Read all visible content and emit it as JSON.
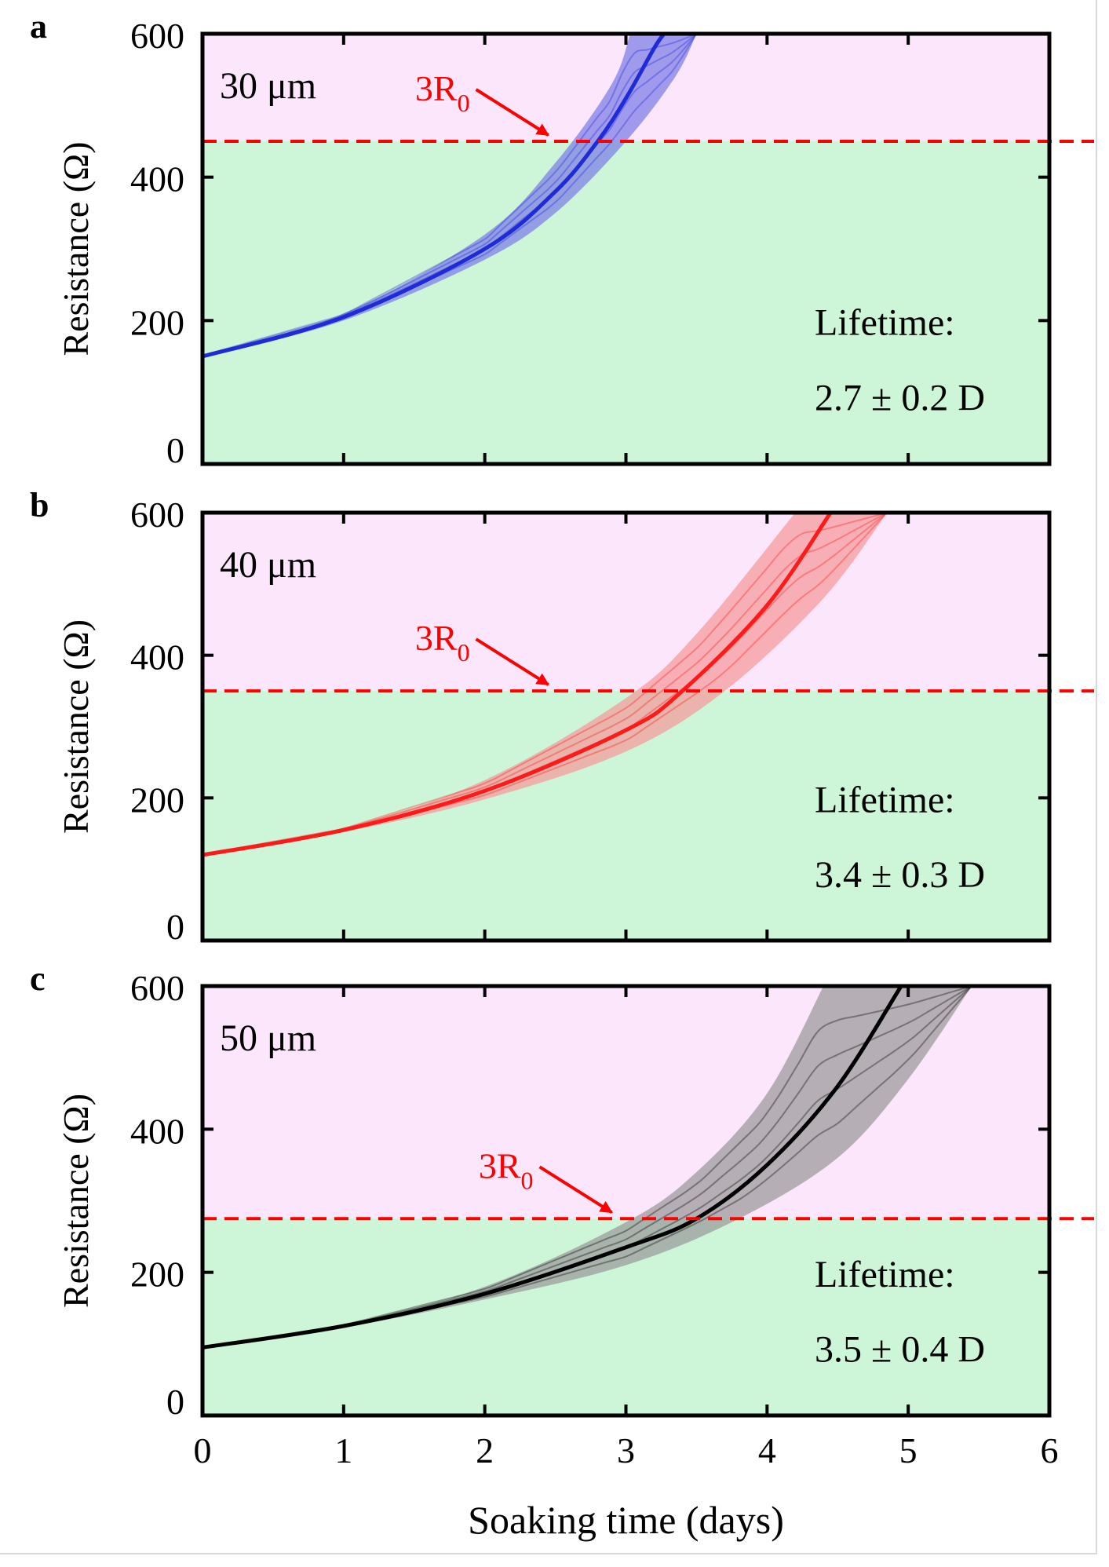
{
  "figure": {
    "xlabel": "Soaking time (days)",
    "ylabel": "Resistance (Ω)",
    "x_ticks": [
      "0",
      "1",
      "2",
      "3",
      "4",
      "5",
      "6"
    ],
    "y_ticks": [
      "0",
      "200",
      "400",
      "600"
    ],
    "threshold_label": "3R",
    "threshold_subscript": "0",
    "lifetime_title": "Lifetime:",
    "colors": {
      "above_threshold": "#fbe6fb",
      "below_threshold": "#cdf5d7",
      "threshold_line": "#ff0000",
      "axis": "#000000"
    }
  },
  "chart_data": [
    {
      "type": "line",
      "panel_label": "a",
      "sample_label": "30 μm",
      "lifetime_value": "2.7 ± 0.2 D",
      "color": "#1f2bd6",
      "band_color": "#7d7de8",
      "xlim": [
        0,
        6
      ],
      "ylim": [
        0,
        600
      ],
      "xlabel": "",
      "ylabel": "Resistance (Ω)",
      "threshold_y": 450,
      "series": [
        {
          "name": "mean",
          "x": [
            0,
            1,
            2,
            2.5,
            2.8,
            3.0,
            3.2,
            3.27
          ],
          "y": [
            150,
            205,
            300,
            380,
            450,
            510,
            580,
            600
          ]
        },
        {
          "name": "upper",
          "x": [
            0,
            1,
            2,
            2.5,
            2.9,
            3.03
          ],
          "y": [
            152,
            210,
            320,
            420,
            530,
            600
          ]
        },
        {
          "name": "lower",
          "x": [
            0,
            1,
            2,
            2.5,
            3.0,
            3.35,
            3.5
          ],
          "y": [
            148,
            200,
            285,
            350,
            450,
            540,
            600
          ]
        }
      ]
    },
    {
      "type": "line",
      "panel_label": "b",
      "sample_label": "40 μm",
      "lifetime_value": "3.4 ± 0.3 D",
      "color": "#ff1a1a",
      "band_color": "#f59a9a",
      "xlim": [
        0,
        6
      ],
      "ylim": [
        0,
        600
      ],
      "xlabel": "",
      "ylabel": "Resistance (Ω)",
      "threshold_y": 350,
      "series": [
        {
          "name": "mean",
          "x": [
            0,
            1,
            2,
            3,
            3.4,
            4,
            4.45
          ],
          "y": [
            120,
            155,
            210,
            295,
            350,
            470,
            600
          ]
        },
        {
          "name": "upper",
          "x": [
            0,
            1,
            2,
            3,
            3.5,
            4.2
          ],
          "y": [
            121,
            158,
            225,
            340,
            430,
            600
          ]
        },
        {
          "name": "lower",
          "x": [
            0,
            1,
            2,
            3,
            3.7,
            4.4,
            4.85
          ],
          "y": [
            119,
            152,
            198,
            265,
            350,
            480,
            600
          ]
        }
      ]
    },
    {
      "type": "line",
      "panel_label": "c",
      "sample_label": "50 μm",
      "lifetime_value": "3.5 ± 0.4 D",
      "color": "#000000",
      "band_color": "#9a9a9a",
      "xlim": [
        0,
        6
      ],
      "ylim": [
        0,
        600
      ],
      "xlabel": "Soaking time (days)",
      "ylabel": "Resistance (Ω)",
      "threshold_y": 275,
      "series": [
        {
          "name": "mean",
          "x": [
            0,
            1,
            2,
            3,
            3.5,
            4,
            4.5,
            4.95
          ],
          "y": [
            95,
            125,
            170,
            235,
            275,
            350,
            460,
            600
          ]
        },
        {
          "name": "upper",
          "x": [
            0,
            1,
            2,
            3,
            3.5,
            4,
            4.4
          ],
          "y": [
            95,
            127,
            180,
            270,
            340,
            450,
            600
          ]
        },
        {
          "name": "lower",
          "x": [
            0,
            1,
            2,
            3,
            3.8,
            4.5,
            5.0,
            5.45
          ],
          "y": [
            95,
            123,
            162,
            210,
            275,
            360,
            470,
            600
          ]
        }
      ]
    }
  ]
}
